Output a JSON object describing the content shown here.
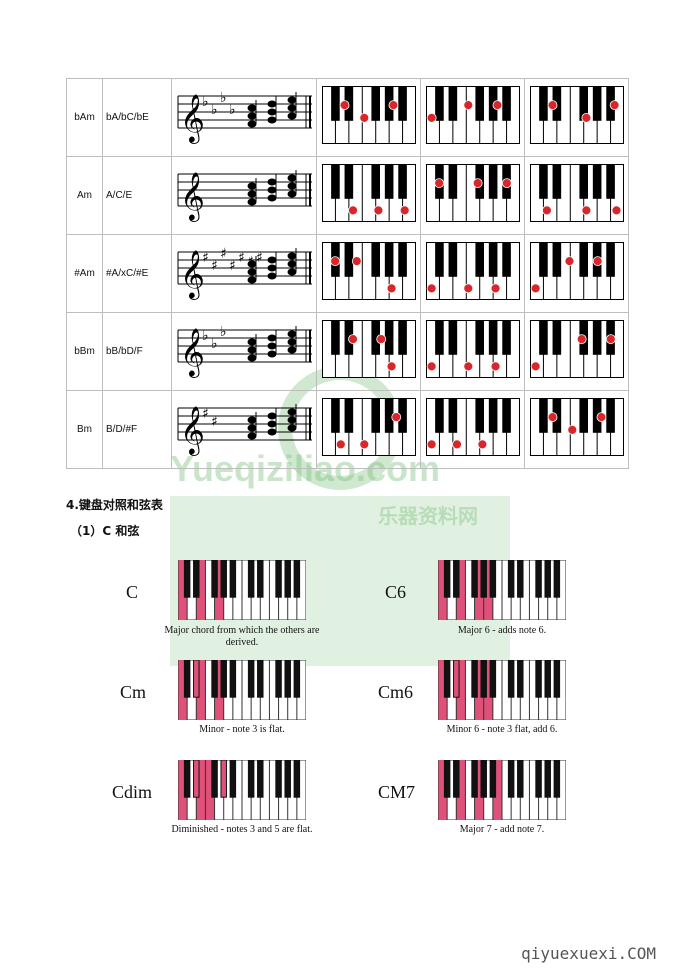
{
  "chord_table": {
    "rows": [
      {
        "name": "bAm",
        "notes": "bA/bC/bE"
      },
      {
        "name": "Am",
        "notes": "A/C/E"
      },
      {
        "name": "#Am",
        "notes": "#A/xC/#E"
      },
      {
        "name": "bBm",
        "notes": "bB/bD/F"
      },
      {
        "name": "Bm",
        "notes": "B/D/#F"
      }
    ]
  },
  "section": {
    "heading": "4.键盘对照和弦表",
    "subheading": "（1）C 和弦"
  },
  "c_chords": [
    {
      "label": "C",
      "desc": "Major chord from which the others are derived."
    },
    {
      "label": "C6",
      "desc": "Major 6 - adds note 6."
    },
    {
      "label": "Cm",
      "desc": "Minor - note 3 is flat."
    },
    {
      "label": "Cm6",
      "desc": "Minor 6 - note 3 flat, add 6."
    },
    {
      "label": "Cdim",
      "desc": "Diminished - notes 3 and 5 are flat."
    },
    {
      "label": "CM7",
      "desc": "Major 7 - add note 7."
    }
  ],
  "watermark": {
    "line1": "Yueqiziliao.com",
    "line2": "乐器资料网"
  },
  "footer": {
    "site": "qiyuexuexi.COM"
  },
  "colors": {
    "highlight": "#e0517a",
    "dot": "#d9262b"
  }
}
